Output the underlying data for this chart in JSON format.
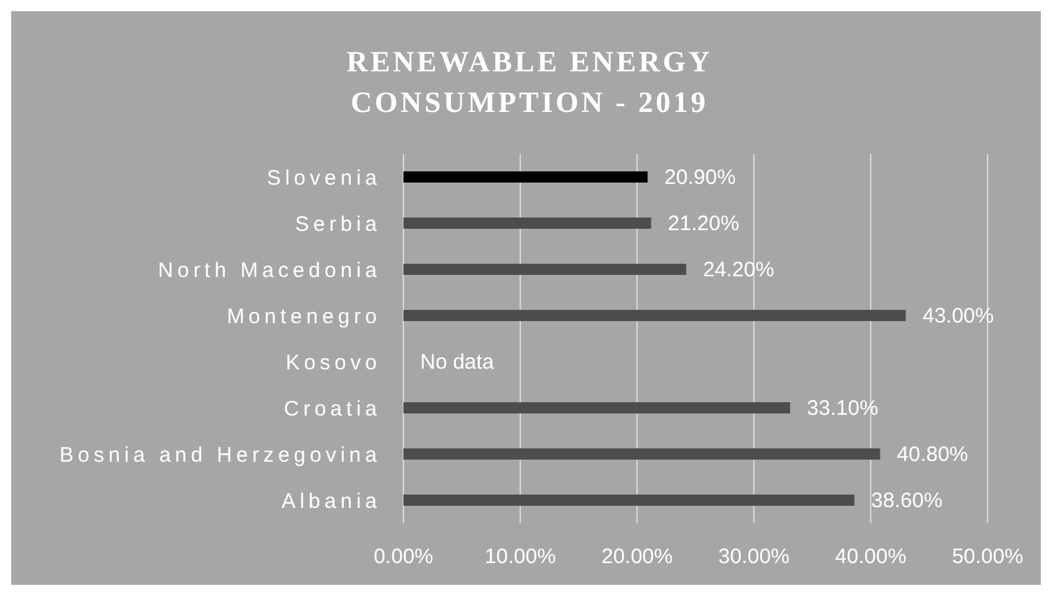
{
  "chart_data": {
    "type": "bar",
    "orientation": "horizontal",
    "title": "RENEWABLE ENERGY CONSUMPTION - 2019",
    "categories": [
      "Slovenia",
      "Serbia",
      "North Macedonia",
      "Montenegro",
      "Kosovo",
      "Croatia",
      "Bosnia and Herzegovina",
      "Albania"
    ],
    "values": [
      20.9,
      21.2,
      24.2,
      43.0,
      null,
      33.1,
      40.8,
      38.6
    ],
    "value_labels": [
      "20.90%",
      "21.20%",
      "24.20%",
      "43.00%",
      "No data",
      "33.10%",
      "40.80%",
      "38.60%"
    ],
    "colors": [
      "#000000",
      "#4d4d4d",
      "#4d4d4d",
      "#4d4d4d",
      "#4d4d4d",
      "#4d4d4d",
      "#4d4d4d",
      "#4d4d4d"
    ],
    "xlim": [
      0,
      50
    ],
    "xticks": [
      {
        "value": 0,
        "label": "0.00%"
      },
      {
        "value": 10,
        "label": "10.00%"
      },
      {
        "value": 20,
        "label": "20.00%"
      },
      {
        "value": 30,
        "label": "30.00%"
      },
      {
        "value": 40,
        "label": "40.00%"
      },
      {
        "value": 50,
        "label": "50.00%"
      }
    ],
    "grid": "x"
  }
}
